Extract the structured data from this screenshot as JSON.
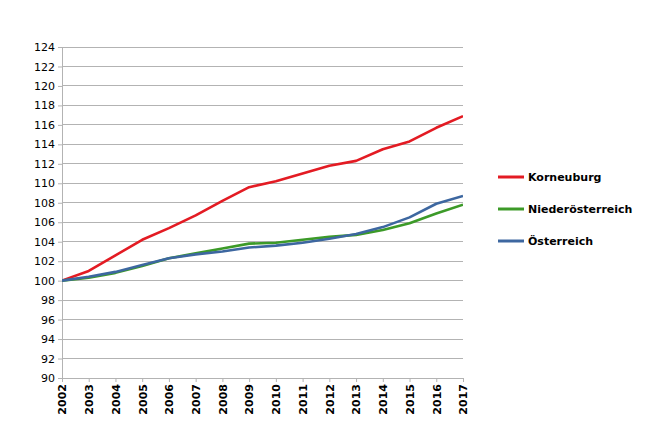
{
  "chart_data": {
    "type": "line",
    "categories": [
      "2002",
      "2003",
      "2004",
      "2005",
      "2006",
      "2007",
      "2008",
      "2009",
      "2010",
      "2011",
      "2012",
      "2013",
      "2014",
      "2015",
      "2016",
      "2017"
    ],
    "series": [
      {
        "name": "Korneuburg",
        "color": "#e31b23",
        "values": [
          100,
          101.0,
          102.6,
          104.2,
          105.4,
          106.7,
          108.2,
          109.6,
          110.2,
          111.0,
          111.8,
          112.3,
          113.5,
          114.3,
          115.7,
          116.9
        ]
      },
      {
        "name": "Niederösterreich",
        "color": "#3c9a28",
        "values": [
          100,
          100.3,
          100.8,
          101.5,
          102.3,
          102.8,
          103.3,
          103.8,
          103.9,
          104.2,
          104.5,
          104.7,
          105.2,
          105.9,
          106.9,
          107.8
        ]
      },
      {
        "name": "Österreich",
        "color": "#3d67a0",
        "values": [
          100,
          100.4,
          100.9,
          101.6,
          102.3,
          102.7,
          103.0,
          103.4,
          103.6,
          103.9,
          104.3,
          104.8,
          105.5,
          106.5,
          107.9,
          108.7
        ]
      }
    ],
    "ylim": [
      90,
      124
    ],
    "yticks": [
      90,
      92,
      94,
      96,
      98,
      100,
      102,
      104,
      106,
      108,
      110,
      112,
      114,
      116,
      118,
      120,
      122,
      124
    ],
    "grid": true,
    "legend": "right"
  }
}
